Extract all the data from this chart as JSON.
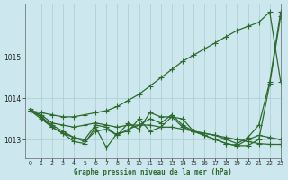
{
  "title": "Graphe pression niveau de la mer (hPa)",
  "background_color": "#cce8ee",
  "grid_color": "#aacccc",
  "line_color": "#2d6a2d",
  "xlim": [
    -0.5,
    23
  ],
  "ylim": [
    1012.55,
    1016.3
  ],
  "yticks": [
    1013,
    1014,
    1015
  ],
  "xticks": [
    0,
    1,
    2,
    3,
    4,
    5,
    6,
    7,
    8,
    9,
    10,
    11,
    12,
    13,
    14,
    15,
    16,
    17,
    18,
    19,
    20,
    21,
    22,
    23
  ],
  "series": [
    {
      "x": [
        0,
        1,
        2,
        3,
        4,
        5,
        6,
        7,
        8,
        9,
        10,
        11,
        12,
        13,
        14,
        15,
        16,
        17,
        18,
        19,
        20,
        21,
        22,
        23
      ],
      "y": [
        1013.7,
        1013.65,
        1013.6,
        1013.55,
        1013.55,
        1013.6,
        1013.65,
        1013.7,
        1013.8,
        1013.95,
        1014.1,
        1014.3,
        1014.5,
        1014.7,
        1014.9,
        1015.05,
        1015.2,
        1015.35,
        1015.5,
        1015.65,
        1015.75,
        1015.85,
        1016.1,
        1014.4
      ],
      "marker": "+",
      "markersize": 4,
      "linewidth": 0.9
    },
    {
      "x": [
        0,
        1,
        2,
        3,
        4,
        5,
        6,
        7,
        8,
        9,
        10,
        11,
        12,
        13,
        14,
        15,
        16,
        17,
        18,
        19,
        20,
        21,
        22,
        23
      ],
      "y": [
        1013.7,
        1013.55,
        1013.3,
        1013.15,
        1012.95,
        1012.9,
        1013.3,
        1012.8,
        1013.15,
        1013.2,
        1013.5,
        1013.2,
        1013.3,
        1013.55,
        1013.5,
        1013.2,
        1013.15,
        1013.1,
        1013.0,
        1012.9,
        1013.05,
        1013.35,
        1014.4,
        1016.1
      ],
      "marker": "+",
      "markersize": 4,
      "linewidth": 0.9
    },
    {
      "x": [
        0,
        1,
        2,
        3,
        4,
        5,
        6,
        7,
        8,
        9,
        10,
        11,
        12,
        13,
        14,
        15,
        16,
        17,
        18,
        19,
        20,
        21,
        22,
        23
      ],
      "y": [
        1013.7,
        1013.6,
        1013.4,
        1013.35,
        1013.3,
        1013.35,
        1013.4,
        1013.35,
        1013.3,
        1013.35,
        1013.35,
        1013.35,
        1013.3,
        1013.3,
        1013.25,
        1013.2,
        1013.15,
        1013.1,
        1013.05,
        1013.0,
        1012.95,
        1012.9,
        1012.88,
        1012.88
      ],
      "marker": "+",
      "markersize": 4,
      "linewidth": 0.9
    },
    {
      "x": [
        0,
        1,
        2,
        3,
        4,
        5,
        6,
        7,
        8,
        9,
        10,
        11,
        12,
        13,
        14,
        15,
        16,
        17,
        18,
        19,
        20,
        21,
        22,
        23
      ],
      "y": [
        1013.7,
        1013.5,
        1013.3,
        1013.15,
        1013.05,
        1013.0,
        1013.35,
        1013.3,
        1013.1,
        1013.4,
        1013.25,
        1013.65,
        1013.55,
        1013.55,
        1013.3,
        1013.2,
        1013.1,
        1013.0,
        1012.9,
        1012.85,
        1012.85,
        1013.0,
        1014.35,
        1016.0
      ],
      "marker": "+",
      "markersize": 4,
      "linewidth": 0.9
    },
    {
      "x": [
        0,
        1,
        2,
        3,
        4,
        5,
        6,
        7,
        8,
        9,
        10,
        11,
        12,
        13,
        14,
        15,
        16,
        17,
        18,
        19,
        20,
        21,
        22,
        23
      ],
      "y": [
        1013.75,
        1013.55,
        1013.35,
        1013.2,
        1013.05,
        1012.95,
        1013.2,
        1013.25,
        1013.1,
        1013.25,
        1013.35,
        1013.5,
        1013.4,
        1013.6,
        1013.35,
        1013.2,
        1013.1,
        1013.0,
        1012.9,
        1012.85,
        1013.0,
        1013.1,
        1013.05,
        1013.0
      ],
      "marker": "+",
      "markersize": 4,
      "linewidth": 0.9
    }
  ]
}
